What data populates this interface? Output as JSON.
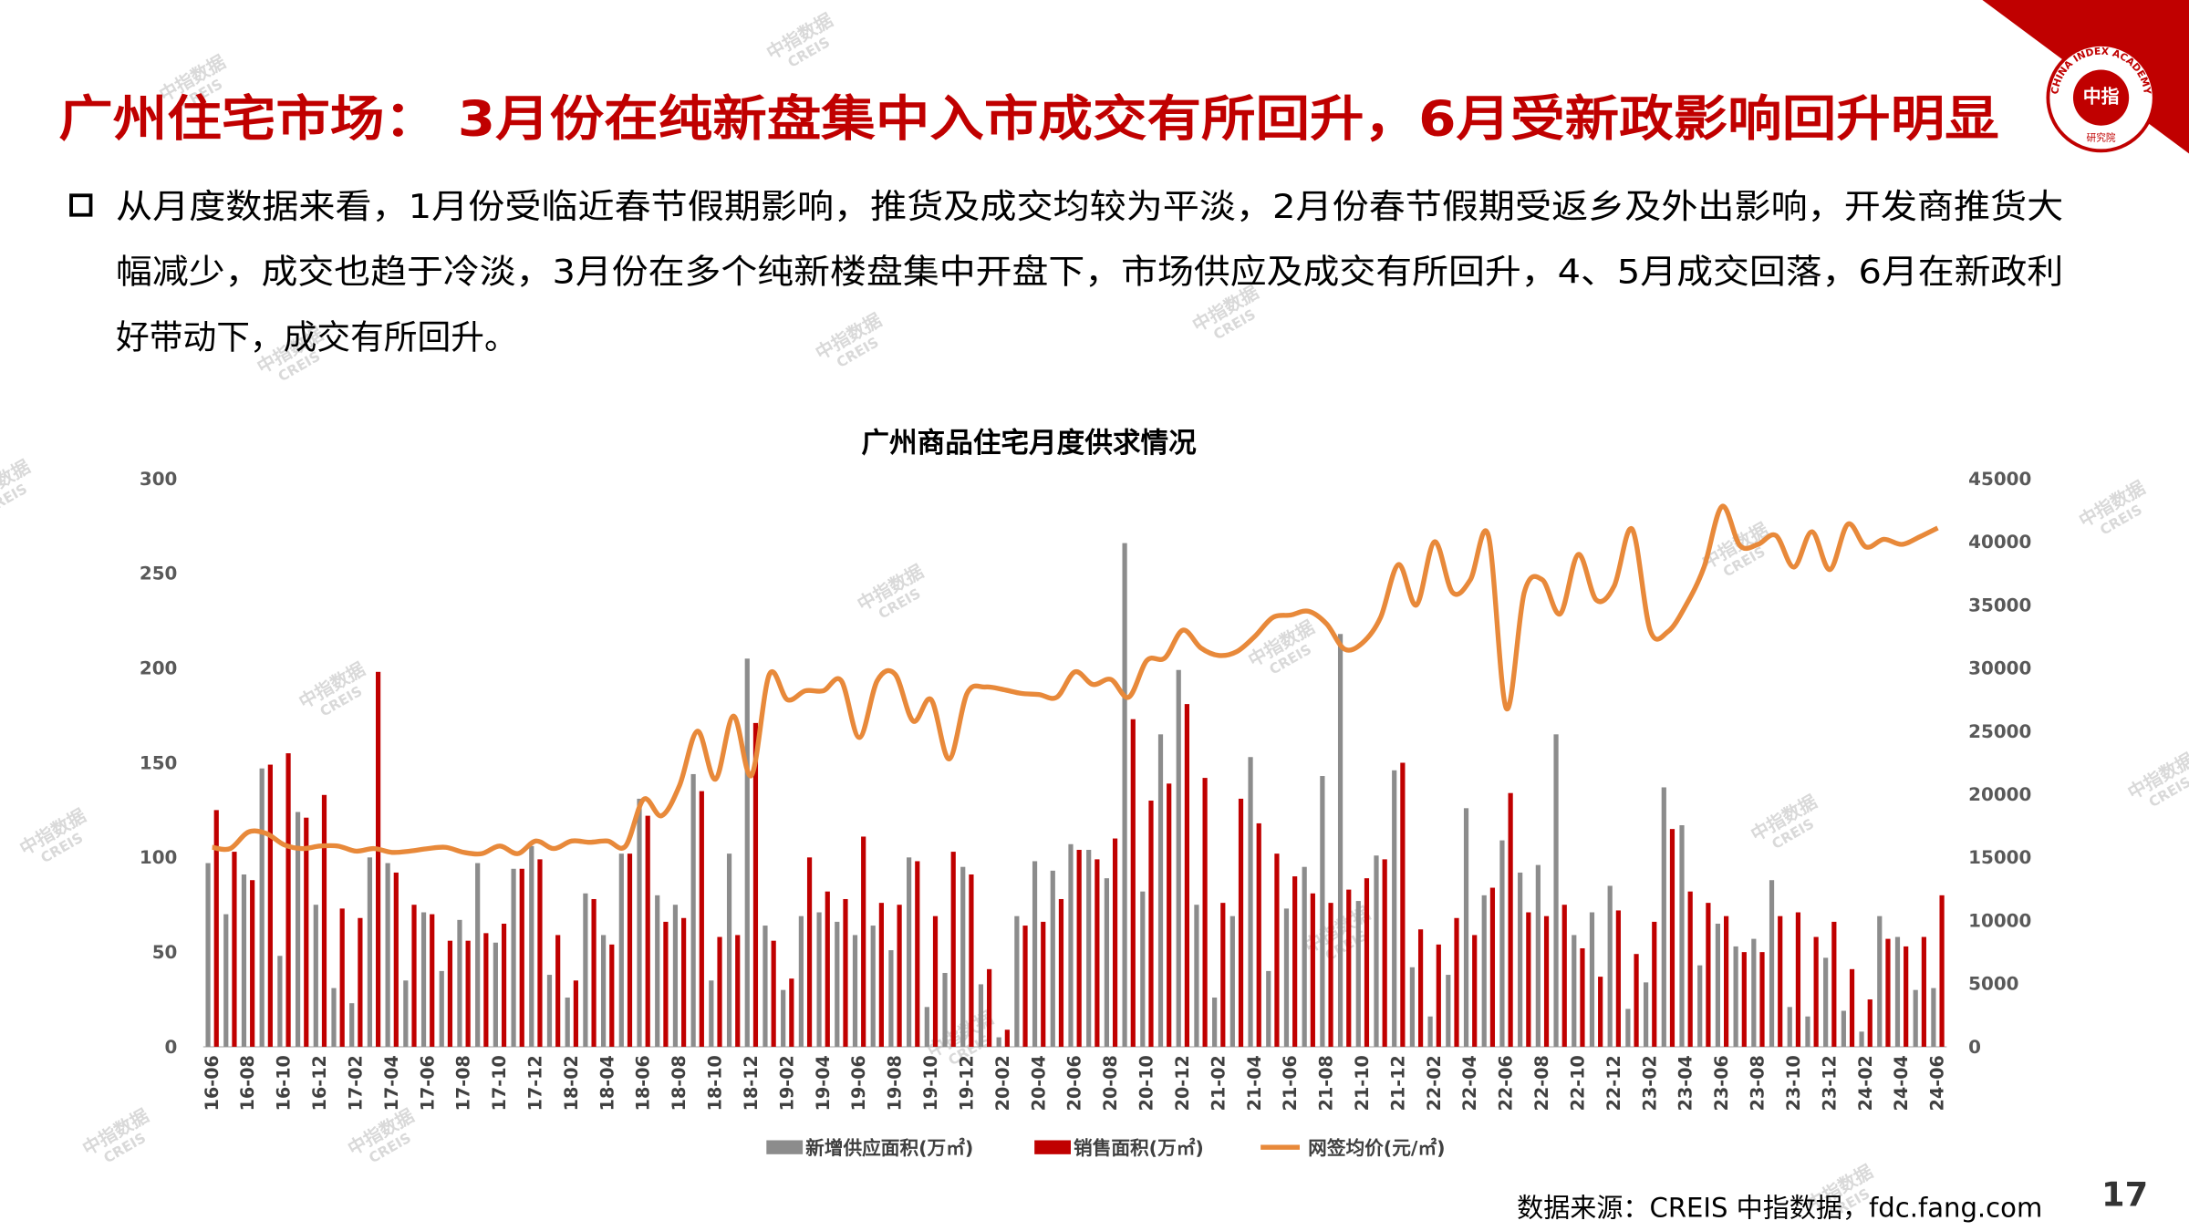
{
  "header": {
    "title": "广州住宅市场： 3月份在纯新盘集中入市成交有所回升，6月受新政影响回升明显"
  },
  "bullet_lines": [
    "从月度数据来看，1月份受临近春节假期影响，推货及成交均较为平淡，2月份春节假期受返乡及外出影响，开发商推货大",
    "幅减少，成交也趋于冷淡，3月份在多个纯新楼盘集中开盘下，市场供应及成交有所回升，4、5月成交回落，6月在新政利",
    "好带动下，成交有所回升。"
  ],
  "logo": {
    "name": "中指",
    "sub": "研究院",
    "ring": "CHINA INDEX ACADEMY"
  },
  "watermark": {
    "cn": "中指数据",
    "en": "CREIS"
  },
  "source": "数据来源：CREIS 中指数据，fdc.fang.com",
  "page_number": "17",
  "chart_data": {
    "type": "bar",
    "title": "广州商品住宅月度供求情况",
    "categories": [
      "16-06",
      null,
      "16-08",
      null,
      "16-10",
      null,
      "16-12",
      null,
      "17-02",
      null,
      "17-04",
      null,
      "17-06",
      null,
      "17-08",
      null,
      "17-10",
      null,
      "17-12",
      null,
      "18-02",
      null,
      "18-04",
      null,
      "18-06",
      null,
      "18-08",
      null,
      "18-10",
      null,
      "18-12",
      null,
      "19-02",
      null,
      "19-04",
      null,
      "19-06",
      null,
      "19-08",
      null,
      "19-10",
      null,
      "19-12",
      null,
      "20-02",
      null,
      "20-04",
      null,
      "20-06",
      null,
      "20-08",
      null,
      "20-10",
      null,
      "20-12",
      null,
      "21-02",
      null,
      "21-04",
      null,
      "21-06",
      null,
      "21-08",
      null,
      "21-10",
      null,
      "21-12",
      null,
      "22-02",
      null,
      "22-04",
      null,
      "22-06",
      null,
      "22-08",
      null,
      "22-10",
      null,
      "22-12",
      null,
      "23-02",
      null,
      "23-04",
      null,
      "23-06",
      null,
      "23-08",
      null,
      "23-10",
      null,
      "23-12",
      null,
      "24-02",
      null,
      "24-04",
      null,
      "24-06"
    ],
    "series": [
      {
        "name": "新增供应面积(万㎡)",
        "color": "#8c8c8c",
        "values": [
          97,
          70,
          91,
          147,
          48,
          124,
          75,
          31,
          23,
          100,
          97,
          35,
          71,
          40,
          67,
          97,
          55,
          94,
          106,
          38,
          26,
          81,
          59,
          102,
          131,
          80,
          75,
          144,
          35,
          102,
          205,
          64,
          30,
          69,
          71,
          66,
          59,
          64,
          51,
          100,
          21,
          39,
          95,
          33,
          5,
          69,
          98,
          93,
          107,
          104,
          89,
          266,
          82,
          165,
          199,
          75,
          26,
          69,
          153,
          40,
          73,
          95,
          143,
          218,
          77,
          101,
          146,
          42,
          16,
          38,
          126,
          80,
          109,
          92,
          96,
          165,
          59,
          71,
          85,
          20,
          34,
          137,
          117,
          43,
          65,
          53,
          57,
          88,
          21,
          16,
          47,
          19,
          8,
          69,
          58,
          30,
          31
        ]
      },
      {
        "name": "销售面积(万㎡)",
        "color": "#c00000",
        "values": [
          125,
          103,
          88,
          149,
          155,
          121,
          133,
          73,
          68,
          198,
          92,
          75,
          70,
          56,
          56,
          60,
          65,
          94,
          99,
          59,
          35,
          78,
          54,
          102,
          122,
          66,
          68,
          135,
          58,
          59,
          171,
          56,
          36,
          100,
          82,
          78,
          111,
          76,
          75,
          98,
          69,
          103,
          91,
          41,
          9,
          64,
          66,
          78,
          104,
          99,
          110,
          173,
          130,
          139,
          181,
          142,
          76,
          131,
          118,
          102,
          90,
          81,
          76,
          83,
          89,
          99,
          150,
          62,
          54,
          68,
          59,
          84,
          134,
          71,
          69,
          75,
          52,
          37,
          72,
          49,
          66,
          115,
          82,
          76,
          69,
          50,
          50,
          69,
          71,
          58,
          66,
          41,
          25,
          57,
          53,
          58,
          80
        ]
      },
      {
        "name": "网签均价(元/㎡)",
        "color": "#e8893a",
        "type": "line",
        "axis": "y2",
        "values": [
          15800,
          15700,
          17000,
          16900,
          16000,
          15700,
          15900,
          15900,
          15500,
          15700,
          15400,
          15500,
          15700,
          15800,
          15400,
          15300,
          15900,
          15300,
          16300,
          15700,
          16300,
          16200,
          16300,
          15900,
          19600,
          18300,
          20700,
          25000,
          21200,
          26200,
          21500,
          29500,
          27500,
          28200,
          28200,
          29000,
          24500,
          29000,
          29500,
          25800,
          27500,
          22800,
          28000,
          28500,
          28300,
          28000,
          27900,
          27700,
          29700,
          28700,
          29100,
          27700,
          30600,
          30800,
          33000,
          31600,
          31000,
          31300,
          32500,
          34000,
          34200,
          34500,
          33500,
          31500,
          32000,
          34000,
          38200,
          35000,
          40000,
          36000,
          37000,
          40500,
          26800,
          36000,
          37000,
          34300,
          39000,
          35400,
          36500,
          41000,
          33000,
          32900,
          35000,
          38000,
          42800,
          39700,
          39800,
          40500,
          38000,
          40800,
          37800,
          41400,
          39600,
          40200,
          39800,
          40400,
          41100
        ]
      }
    ],
    "ylim": [
      0,
      300
    ],
    "yticks": [
      0,
      50,
      100,
      150,
      200,
      250,
      300
    ],
    "y2lim": [
      0,
      45000
    ],
    "y2ticks": [
      0,
      5000,
      10000,
      15000,
      20000,
      25000,
      30000,
      35000,
      40000,
      45000
    ],
    "legend": "bottom",
    "grid": false
  }
}
